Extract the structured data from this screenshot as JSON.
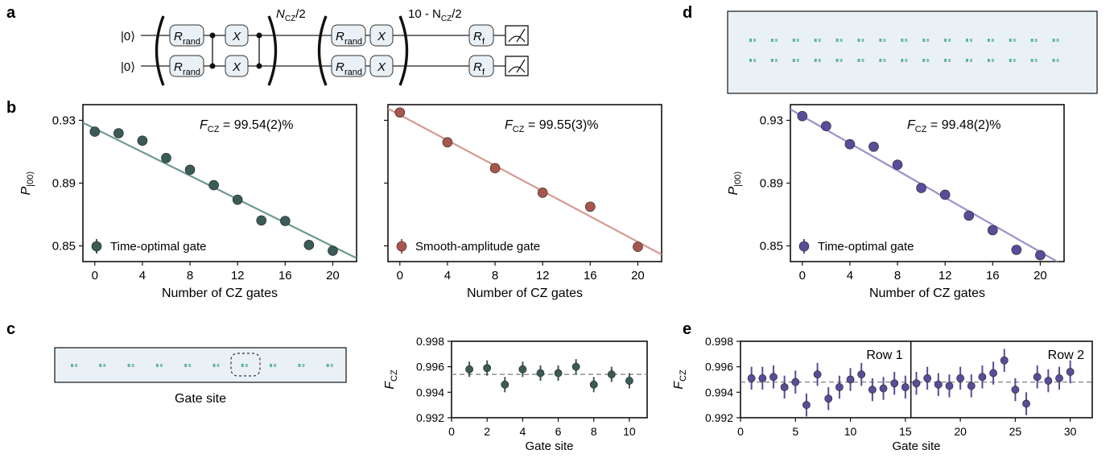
{
  "panel_labels": {
    "a": "a",
    "b": "b",
    "c": "c",
    "d": "d",
    "e": "e"
  },
  "colors": {
    "teal": "#3b5b56",
    "teal_line": "#6e9a90",
    "red": "#a8564d",
    "red_line": "#d49a92",
    "purple": "#5b4b99",
    "purple_line": "#9a92cc",
    "gate_box": "#eaf1f6",
    "site_dot": "#3aa57a",
    "dash": "#8a8a8a"
  },
  "circuit": {
    "qubit_labels": [
      "|0⟩",
      "|0⟩"
    ],
    "r_rand": "R",
    "r_rand_sub": "rand",
    "x_gate": "X",
    "r_final": "R",
    "r_final_sub": "f",
    "repeat1_base": "N",
    "repeat1_sub": "CZ",
    "repeat1_tail": "/2",
    "repeat2_prefix": "10 - N",
    "repeat2_sub": "CZ",
    "repeat2_tail": "/2"
  },
  "panel_c": {
    "image_caption": "Gate site"
  },
  "chart_data": [
    {
      "id": "b1",
      "type": "scatter",
      "ylabel_main": "P",
      "ylabel_sub": "|00⟩",
      "xlabel": "Number of CZ gates",
      "ylim": [
        0.84,
        0.94
      ],
      "xlim": [
        -1,
        22
      ],
      "yticks": [
        0.85,
        0.89,
        0.93
      ],
      "xticks": [
        0,
        4,
        8,
        12,
        16,
        20
      ],
      "annotation_main": "F",
      "annotation_sub": "CZ",
      "annotation_value": "= 99.54(2)%",
      "legend": "Time-optimal gate",
      "x": [
        0,
        2,
        4,
        6,
        8,
        10,
        12,
        14,
        16,
        18,
        20
      ],
      "y": [
        0.9228,
        0.9218,
        0.917,
        0.906,
        0.8985,
        0.8887,
        0.8794,
        0.8662,
        0.8659,
        0.8506,
        0.8469
      ],
      "err": [
        0.0012,
        0.0012,
        0.0012,
        0.0012,
        0.0012,
        0.0012,
        0.0012,
        0.0015,
        0.0012,
        0.0018,
        0.0012
      ],
      "fit": [
        [
          -1,
          0.9285
        ],
        [
          22,
          0.8422
        ]
      ]
    },
    {
      "id": "b2",
      "type": "scatter",
      "xlabel": "Number of CZ gates",
      "ylim": [
        0.84,
        0.94
      ],
      "xlim": [
        -1,
        22
      ],
      "yticks": [
        0.85,
        0.89,
        0.93
      ],
      "xticks": [
        0,
        4,
        8,
        12,
        16,
        20
      ],
      "annotation_main": "F",
      "annotation_sub": "CZ",
      "annotation_value": "= 99.55(3)%",
      "legend": "Smooth-amplitude gate",
      "x": [
        0,
        4,
        8,
        12,
        16,
        20
      ],
      "y": [
        0.935,
        0.916,
        0.8995,
        0.8839,
        0.875,
        0.8494
      ],
      "err": [
        0.0014,
        0.0014,
        0.0022,
        0.0018,
        0.0014,
        0.0014
      ],
      "fit": [
        [
          -1,
          0.9375
        ],
        [
          22,
          0.8445
        ]
      ]
    },
    {
      "id": "d",
      "type": "scatter",
      "ylabel_main": "P",
      "ylabel_sub": "|00⟩",
      "xlabel": "Number of CZ gates",
      "ylim": [
        0.84,
        0.94
      ],
      "xlim": [
        -1,
        22
      ],
      "yticks": [
        0.85,
        0.89,
        0.93
      ],
      "xticks": [
        0,
        4,
        8,
        12,
        16,
        20
      ],
      "annotation_main": "F",
      "annotation_sub": "CZ",
      "annotation_value": "= 99.48(2)%",
      "legend": "Time-optimal gate",
      "x": [
        0,
        2,
        4,
        6,
        8,
        10,
        12,
        14,
        16,
        18,
        20
      ],
      "y": [
        0.9327,
        0.9263,
        0.9148,
        0.9132,
        0.9017,
        0.8869,
        0.8826,
        0.8693,
        0.86,
        0.8475,
        0.8441
      ],
      "err": [
        0.0012,
        0.0012,
        0.0012,
        0.0012,
        0.0012,
        0.0012,
        0.0012,
        0.0012,
        0.0012,
        0.0012,
        0.0012
      ],
      "fit": [
        [
          -1,
          0.937
        ],
        [
          22,
          0.8375
        ]
      ]
    },
    {
      "id": "c",
      "type": "scatter",
      "ylabel_main": "F",
      "ylabel_sub": "CZ",
      "xlabel": "Gate site",
      "ylim": [
        0.992,
        0.998
      ],
      "xlim": [
        0,
        11
      ],
      "yticks": [
        0.992,
        0.994,
        0.996,
        0.998
      ],
      "xticks": [
        0,
        2,
        4,
        6,
        8,
        10
      ],
      "mean": 0.9954,
      "x": [
        1,
        2,
        3,
        4,
        5,
        6,
        7,
        8,
        9,
        10
      ],
      "y": [
        0.9958,
        0.9959,
        0.9946,
        0.9958,
        0.9955,
        0.9955,
        0.996,
        0.9946,
        0.9954,
        0.9949
      ],
      "err": [
        0.0006,
        0.0006,
        0.0006,
        0.0006,
        0.0006,
        0.0006,
        0.0006,
        0.0006,
        0.0006,
        0.0006
      ]
    },
    {
      "id": "e",
      "type": "scatter",
      "ylabel_main": "F",
      "ylabel_sub": "CZ",
      "xlabel": "Gate site",
      "ylim": [
        0.992,
        0.998
      ],
      "xlim": [
        0,
        32
      ],
      "yticks": [
        0.992,
        0.994,
        0.996,
        0.998
      ],
      "xticks": [
        0,
        5,
        10,
        15,
        20,
        25,
        30
      ],
      "mean": 0.9948,
      "divider_x": 15.5,
      "row_labels": [
        "Row 1",
        "Row 2"
      ],
      "x": [
        1,
        2,
        3,
        4,
        5,
        6,
        7,
        8,
        9,
        10,
        11,
        12,
        13,
        14,
        15,
        16,
        17,
        18,
        19,
        20,
        21,
        22,
        23,
        24,
        25,
        26,
        27,
        28,
        29,
        30
      ],
      "y": [
        0.9951,
        0.9951,
        0.9952,
        0.9944,
        0.9948,
        0.993,
        0.9954,
        0.9935,
        0.9944,
        0.995,
        0.9954,
        0.9942,
        0.9943,
        0.9947,
        0.9944,
        0.9947,
        0.9951,
        0.9946,
        0.9945,
        0.9951,
        0.9945,
        0.9952,
        0.9955,
        0.9965,
        0.9942,
        0.9931,
        0.9952,
        0.9949,
        0.9951,
        0.9956
      ],
      "err": [
        0.0009,
        0.0009,
        0.0009,
        0.0009,
        0.0009,
        0.0009,
        0.0009,
        0.0009,
        0.0009,
        0.0009,
        0.0009,
        0.0009,
        0.0009,
        0.0009,
        0.0009,
        0.0009,
        0.0009,
        0.0009,
        0.0009,
        0.0009,
        0.0009,
        0.0009,
        0.0009,
        0.0009,
        0.0009,
        0.0009,
        0.0009,
        0.0009,
        0.0009,
        0.0009
      ]
    }
  ]
}
